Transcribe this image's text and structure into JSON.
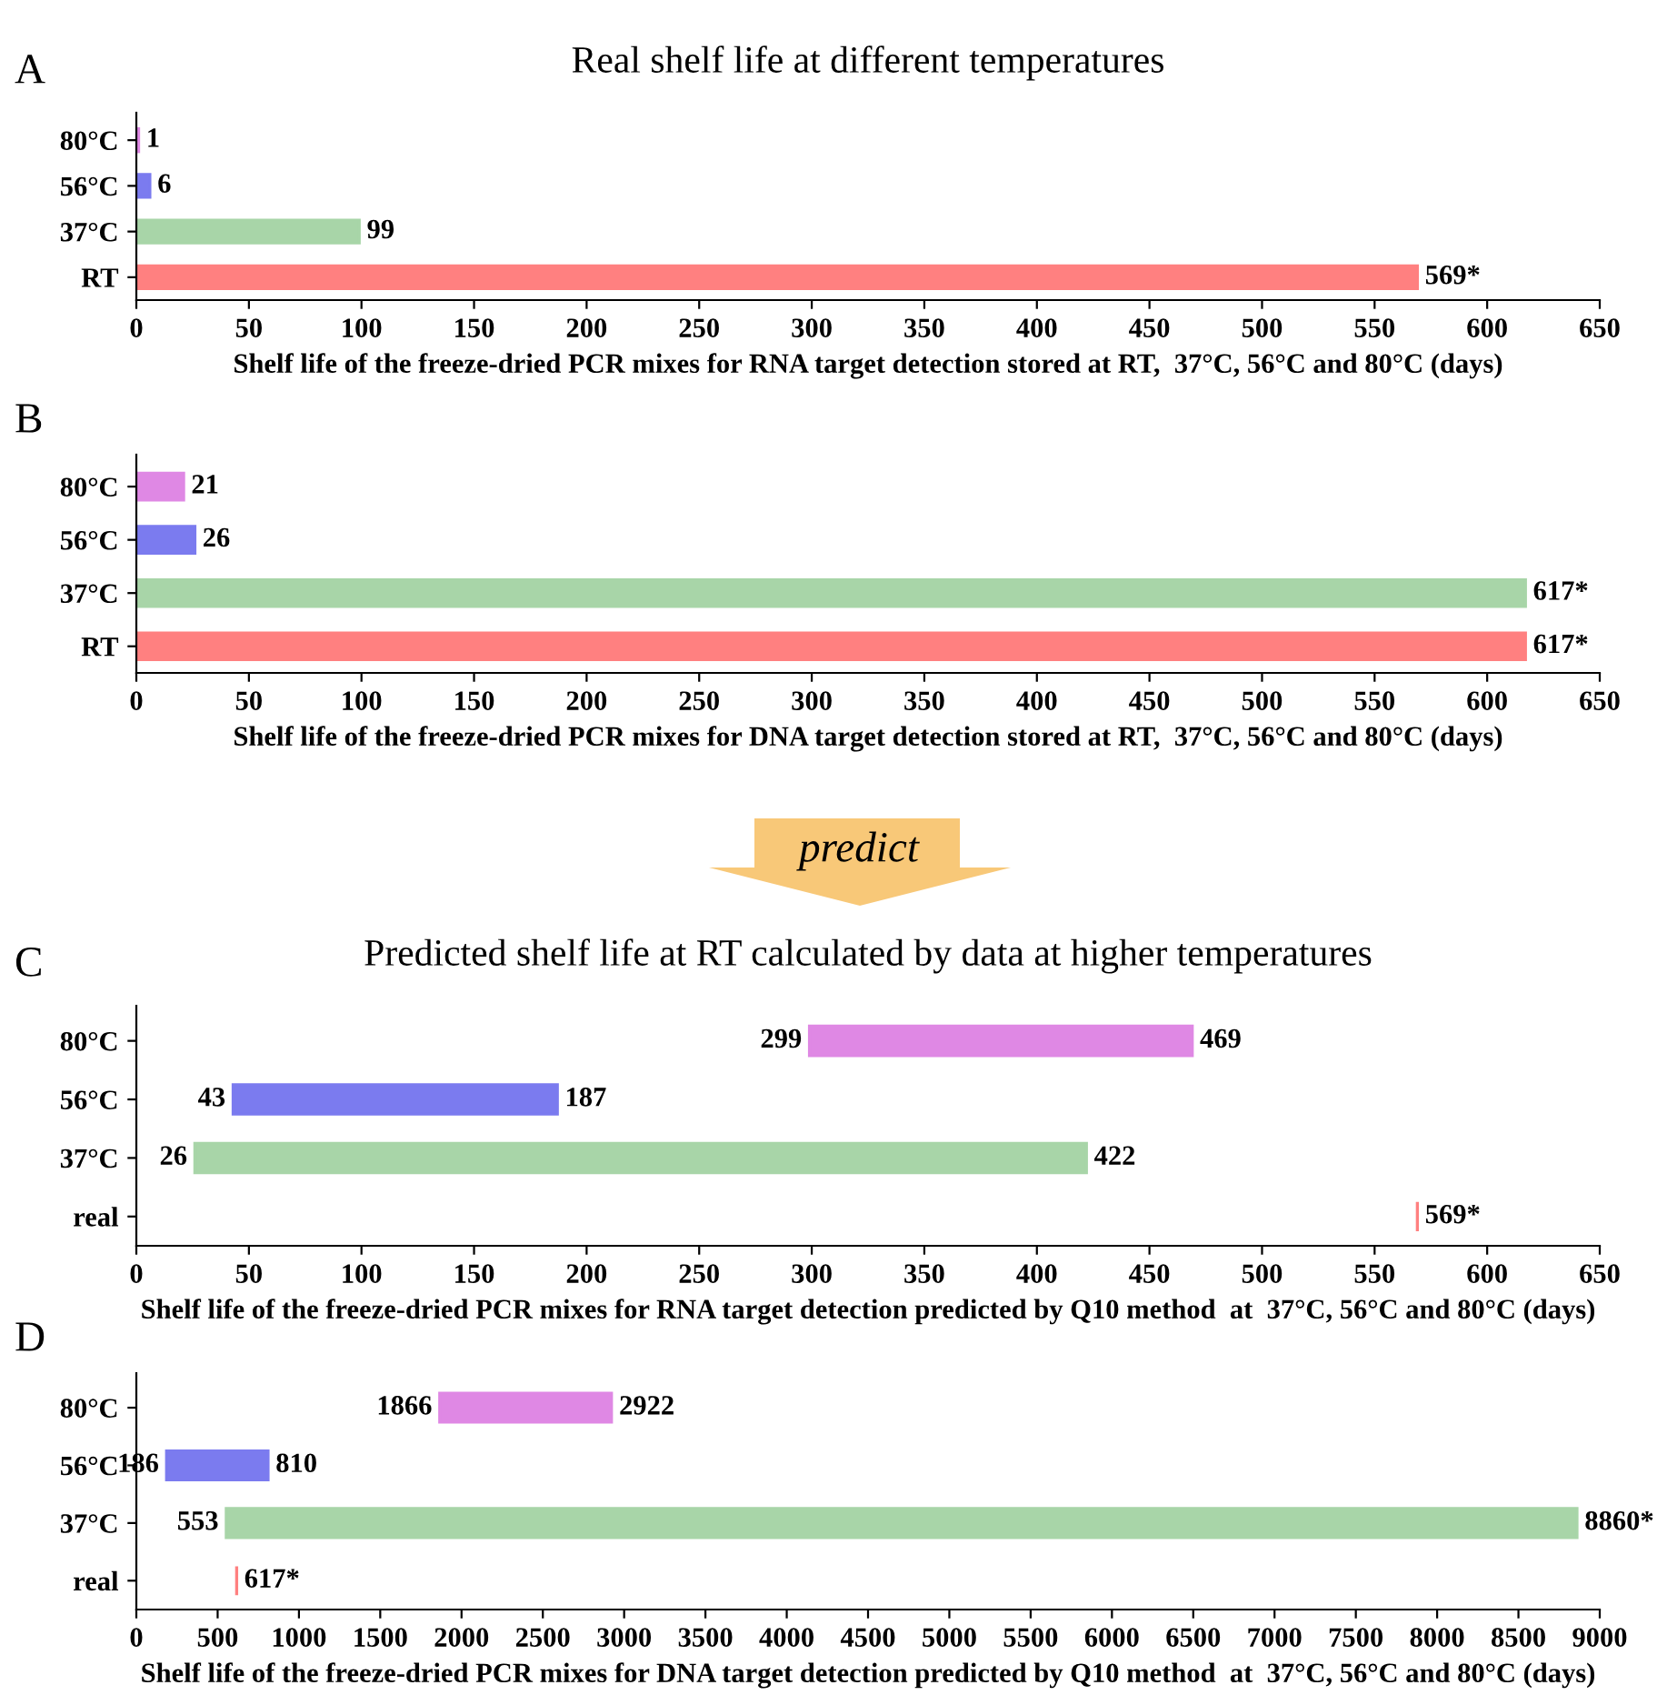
{
  "chart_data": [
    {
      "type": "bar",
      "orientation": "horizontal",
      "title": "Real shelf life at different temperatures",
      "xlabel": "Shelf life of the freeze-dried PCR mixes for RNA target detection stored at RT,  37°C, 56°C and 80°C (days)",
      "categories": [
        "80°C",
        "56°C",
        "37°C",
        "RT"
      ],
      "values": [
        1,
        6,
        99,
        569
      ],
      "colors": [
        "#df88e4",
        "#7b7bef",
        "#a8d5a8",
        "#ff8080"
      ],
      "value_labels": [
        "1",
        "6",
        "99",
        "569*"
      ],
      "xlim": [
        0,
        650
      ],
      "xticks": [
        0,
        50,
        100,
        150,
        200,
        250,
        300,
        350,
        400,
        450,
        500,
        550,
        600,
        650
      ],
      "annotations": [
        "A"
      ]
    },
    {
      "type": "bar",
      "orientation": "horizontal",
      "xlabel": "Shelf life of the freeze-dried PCR mixes for DNA target detection stored at RT,  37°C, 56°C and 80°C (days)",
      "categories": [
        "80°C",
        "56°C",
        "37°C",
        "RT"
      ],
      "values": [
        21,
        26,
        617,
        617
      ],
      "colors": [
        "#df88e4",
        "#7b7bef",
        "#a8d5a8",
        "#ff8080"
      ],
      "value_labels": [
        "21",
        "26",
        "617*",
        "617*"
      ],
      "xlim": [
        0,
        650
      ],
      "xticks": [
        0,
        50,
        100,
        150,
        200,
        250,
        300,
        350,
        400,
        450,
        500,
        550,
        600,
        650
      ],
      "annotations": [
        "B"
      ]
    },
    {
      "type": "bar",
      "orientation": "horizontal",
      "title": "Predicted shelf life at RT calculated by data at higher temperatures",
      "xlabel": "Shelf life of the freeze-dried PCR mixes for RNA target detection predicted by Q10 method  at  37°C, 56°C and 80°C (days)",
      "categories": [
        "80°C",
        "56°C",
        "37°C",
        "real"
      ],
      "base": [
        299,
        43,
        26,
        569
      ],
      "values": [
        170,
        144,
        396,
        0
      ],
      "colors": [
        "#df88e4",
        "#7b7bef",
        "#a8d5a8",
        "#ff8080"
      ],
      "value_labels": [
        "469",
        "187",
        "422",
        "569*"
      ],
      "xlim": [
        0,
        650
      ],
      "xticks": [
        0,
        50,
        100,
        150,
        200,
        250,
        300,
        350,
        400,
        450,
        500,
        550,
        600,
        650
      ],
      "annotations": [
        "C",
        "predict",
        {
          "text": "299",
          "x": 299,
          "y": "80°C"
        },
        {
          "text": "43",
          "x": 43,
          "y": "56°C"
        },
        {
          "text": "26",
          "x": 26,
          "y": "37°C"
        }
      ]
    },
    {
      "type": "bar",
      "orientation": "horizontal",
      "xlabel": "Shelf life of the freeze-dried PCR mixes for DNA target detection predicted by Q10 method  at  37°C, 56°C and 80°C (days)",
      "categories": [
        "80°C",
        "56°C",
        "37°C",
        "real"
      ],
      "base": [
        1866,
        186,
        553,
        617
      ],
      "values": [
        1056,
        624,
        8307,
        0
      ],
      "colors": [
        "#df88e4",
        "#7b7bef",
        "#a8d5a8",
        "#ff8080"
      ],
      "value_labels": [
        "2922",
        "810",
        "8860*",
        "617*"
      ],
      "xlim": [
        0,
        9000
      ],
      "xticks": [
        0,
        500,
        1000,
        1500,
        2000,
        2500,
        3000,
        3500,
        4000,
        4500,
        5000,
        5500,
        6000,
        6500,
        7000,
        7500,
        8000,
        8500,
        9000
      ],
      "annotations": [
        "D",
        {
          "text": "1866",
          "x": 1866,
          "y": "80°C"
        },
        {
          "text": "186",
          "x": 186,
          "y": "56°C"
        },
        {
          "text": "553",
          "x": 553,
          "y": "37°C"
        }
      ]
    }
  ]
}
